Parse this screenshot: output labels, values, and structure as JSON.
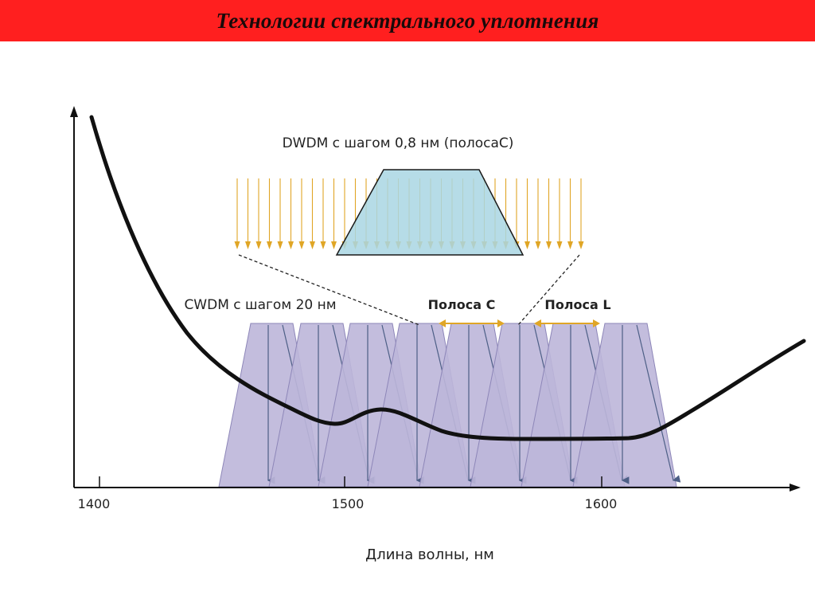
{
  "slide": {
    "title": "Технологии спектрального уплотнения"
  },
  "diagram": {
    "dwdm_label": "DWDM с шагом 0,8 нм (полосаС)",
    "cwdm_label": "CWDM с шагом 20 нм",
    "band_c_label": "Полоса С",
    "band_l_label": "Полоса L",
    "x_axis_label": "Длина волны, нм",
    "x_ticks": [
      "1400",
      "1500",
      "1600"
    ]
  },
  "colors": {
    "title_bg": "#ff1f1f",
    "cwdm_fill": "#bcb6d9",
    "cwdm_stroke": "#8d86b8",
    "dwdm_fill": "#a9d6e3",
    "dwdm_arrow": "#e0a626",
    "band_arrow": "#e0a626",
    "curve": "#111111"
  }
}
